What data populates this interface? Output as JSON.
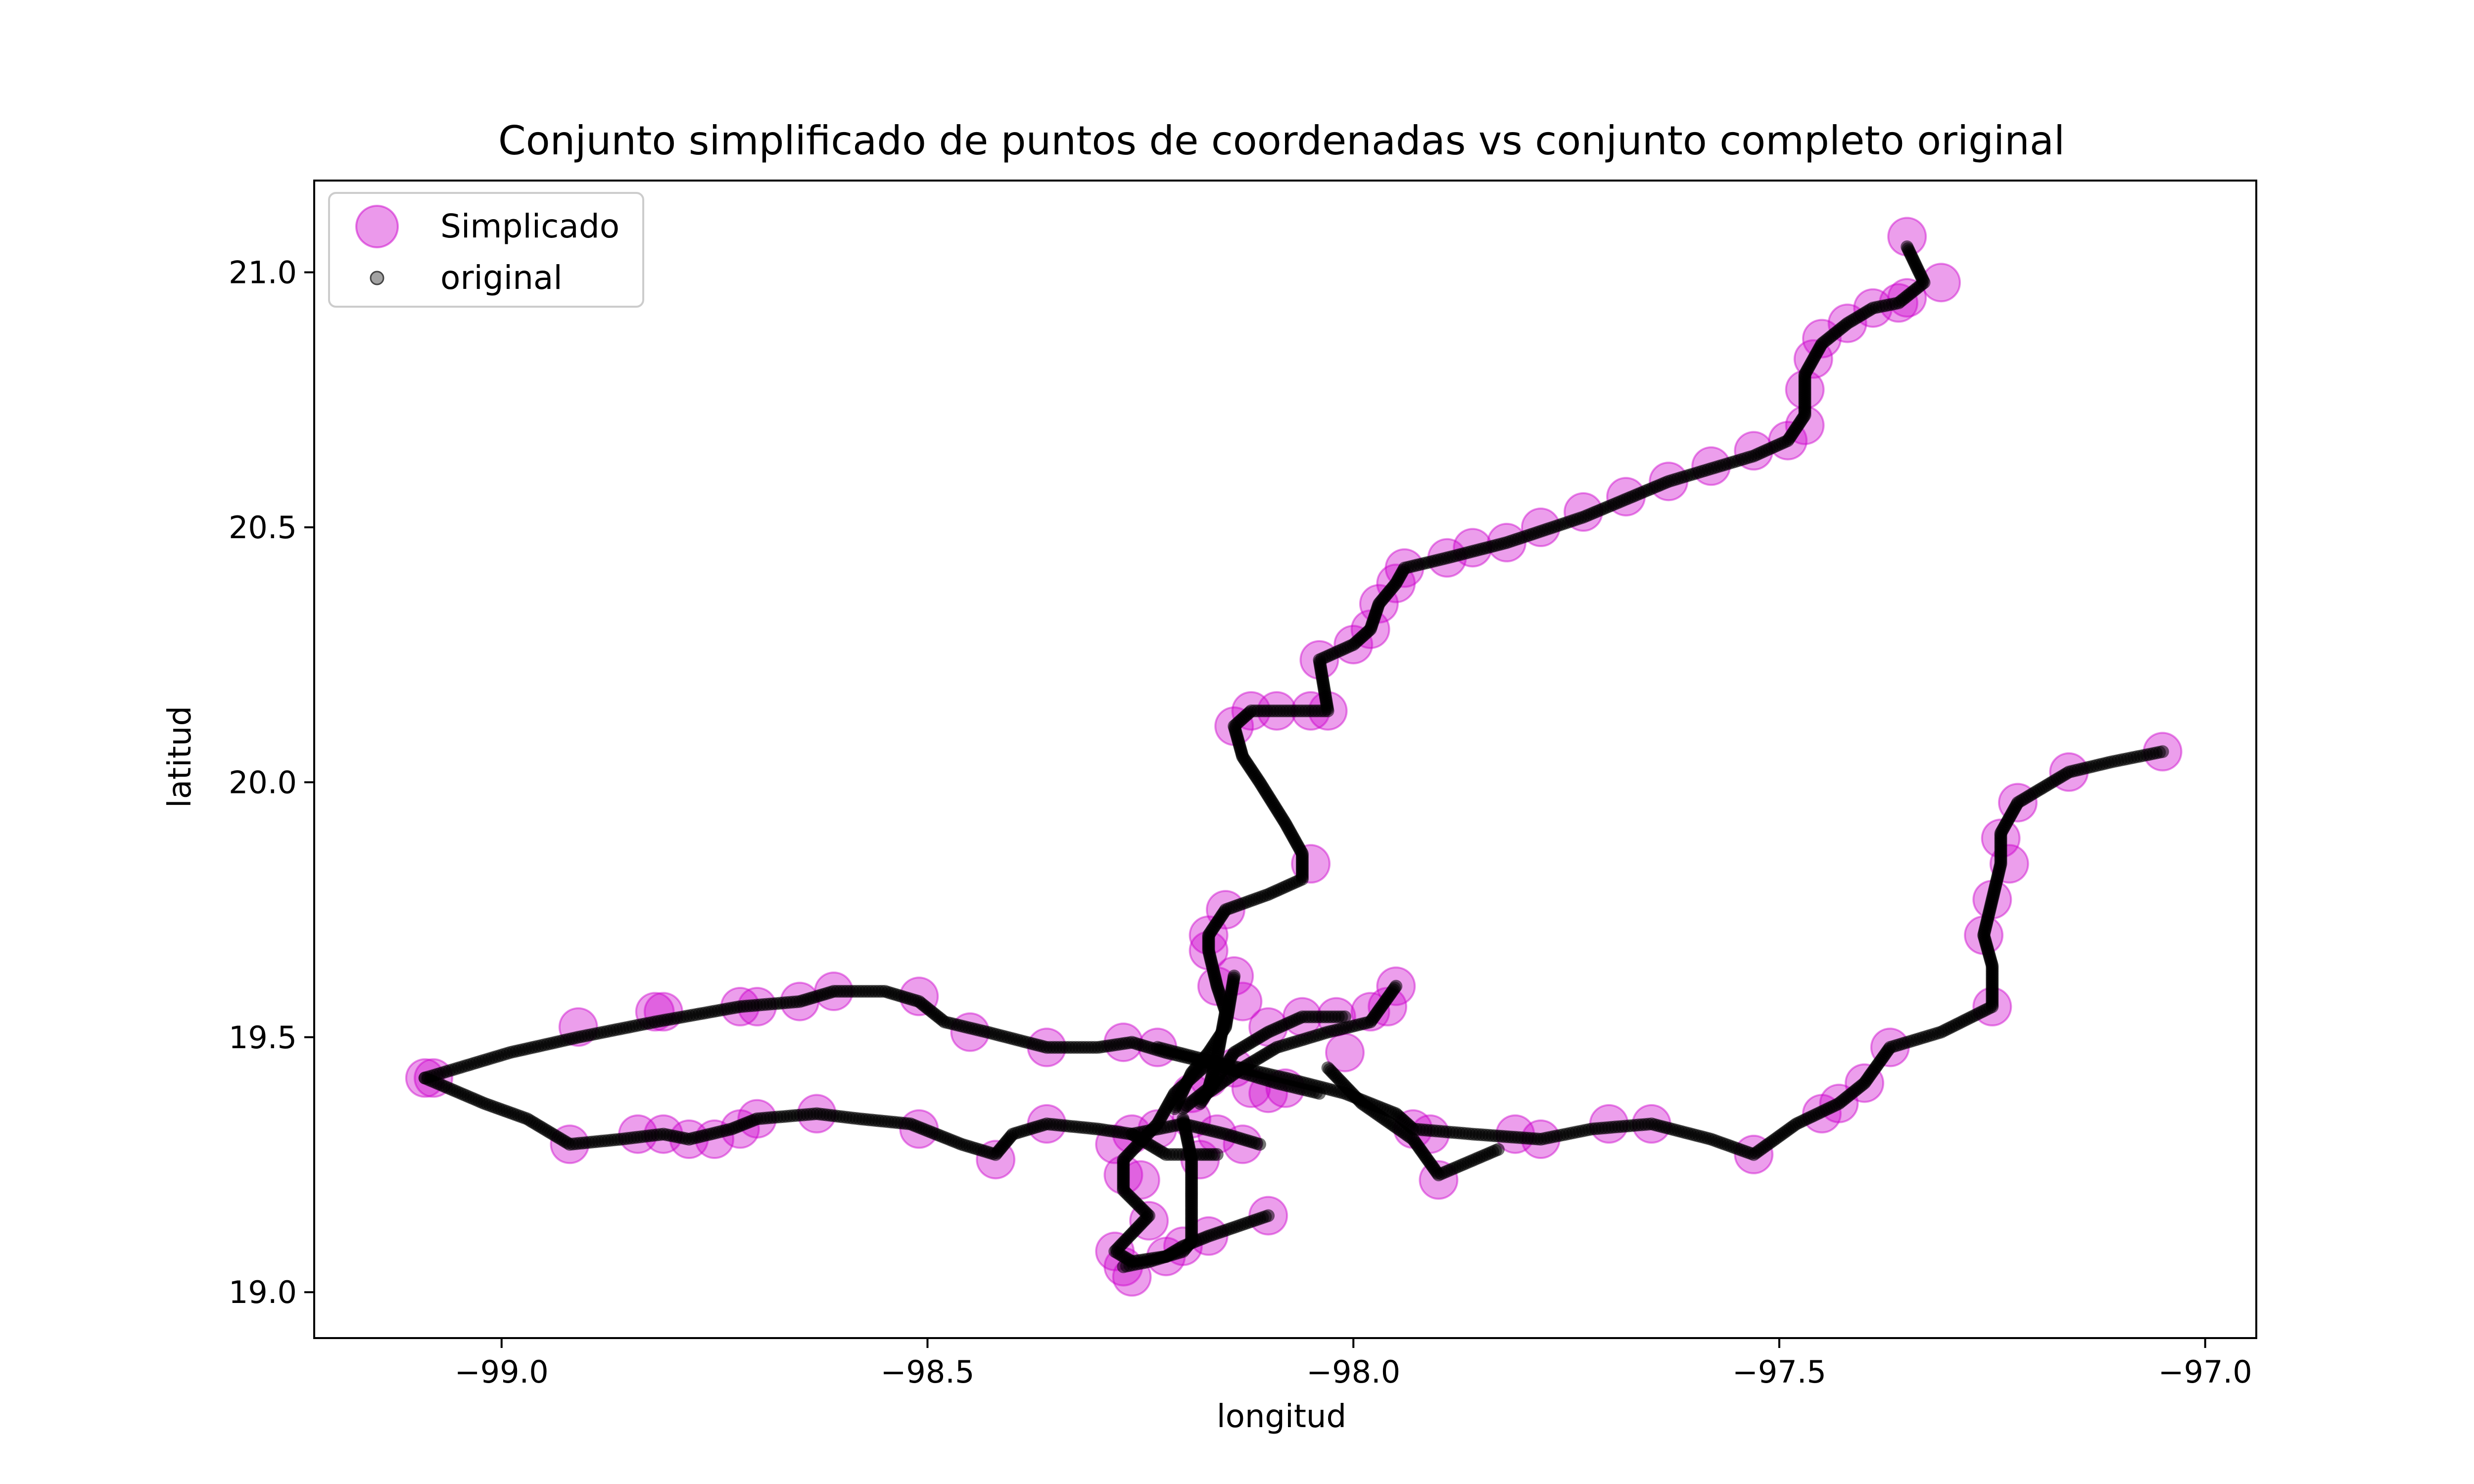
{
  "chart_data": {
    "type": "scatter",
    "title": "Conjunto simplificado de puntos de coordenadas vs conjunto completo original",
    "xlabel": "longitud",
    "ylabel": "latitud",
    "xlim": [
      -99.22,
      -96.94
    ],
    "ylim": [
      18.91,
      21.18
    ],
    "xticks": [
      -99.0,
      -98.5,
      -98.0,
      -97.5,
      -97.0
    ],
    "xtick_labels": [
      "−99.0",
      "−98.5",
      "−98.0",
      "−97.5",
      "−97.0"
    ],
    "yticks": [
      19.0,
      19.5,
      20.0,
      20.5,
      21.0
    ],
    "ytick_labels": [
      "19.0",
      "19.5",
      "20.0",
      "20.5",
      "21.0"
    ],
    "grid": false,
    "legend_position": "top-left",
    "series": [
      {
        "name": "Simplicado",
        "color": "#cc00cc",
        "marker": "large-circle",
        "points": [
          [
            -99.09,
            19.42
          ],
          [
            -99.08,
            19.42
          ],
          [
            -98.91,
            19.52
          ],
          [
            -98.82,
            19.55
          ],
          [
            -98.81,
            19.55
          ],
          [
            -98.72,
            19.56
          ],
          [
            -98.7,
            19.56
          ],
          [
            -98.65,
            19.57
          ],
          [
            -98.61,
            19.59
          ],
          [
            -98.51,
            19.58
          ],
          [
            -98.45,
            19.51
          ],
          [
            -98.36,
            19.48
          ],
          [
            -98.27,
            19.49
          ],
          [
            -98.23,
            19.48
          ],
          [
            -98.92,
            19.29
          ],
          [
            -98.84,
            19.31
          ],
          [
            -98.81,
            19.31
          ],
          [
            -98.78,
            19.3
          ],
          [
            -98.75,
            19.3
          ],
          [
            -98.72,
            19.32
          ],
          [
            -98.7,
            19.34
          ],
          [
            -98.63,
            19.35
          ],
          [
            -98.51,
            19.32
          ],
          [
            -98.42,
            19.26
          ],
          [
            -98.36,
            19.33
          ],
          [
            -98.28,
            19.29
          ],
          [
            -98.26,
            19.31
          ],
          [
            -98.23,
            19.32
          ],
          [
            -98.19,
            19.34
          ],
          [
            -98.16,
            19.31
          ],
          [
            -98.13,
            19.29
          ],
          [
            -98.27,
            19.23
          ],
          [
            -98.25,
            19.22
          ],
          [
            -98.24,
            19.14
          ],
          [
            -98.28,
            19.08
          ],
          [
            -98.27,
            19.05
          ],
          [
            -98.26,
            19.03
          ],
          [
            -98.22,
            19.07
          ],
          [
            -98.2,
            19.09
          ],
          [
            -98.17,
            19.11
          ],
          [
            -98.1,
            19.15
          ],
          [
            -98.18,
            19.26
          ],
          [
            -98.19,
            19.39
          ],
          [
            -98.17,
            19.42
          ],
          [
            -98.14,
            19.44
          ],
          [
            -98.12,
            19.4
          ],
          [
            -98.1,
            19.39
          ],
          [
            -98.08,
            19.4
          ],
          [
            -98.06,
            19.54
          ],
          [
            -98.02,
            19.54
          ],
          [
            -97.98,
            19.55
          ],
          [
            -97.96,
            19.56
          ],
          [
            -97.95,
            19.6
          ],
          [
            -98.01,
            19.47
          ],
          [
            -97.93,
            19.32
          ],
          [
            -97.91,
            19.31
          ],
          [
            -97.9,
            19.22
          ],
          [
            -97.81,
            19.31
          ],
          [
            -97.78,
            19.3
          ],
          [
            -97.7,
            19.33
          ],
          [
            -97.65,
            19.33
          ],
          [
            -97.53,
            19.27
          ],
          [
            -97.45,
            19.35
          ],
          [
            -97.43,
            19.37
          ],
          [
            -97.4,
            19.41
          ],
          [
            -97.37,
            19.48
          ],
          [
            -97.25,
            19.56
          ],
          [
            -97.26,
            19.7
          ],
          [
            -97.25,
            19.77
          ],
          [
            -97.24,
            19.89
          ],
          [
            -97.23,
            19.84
          ],
          [
            -97.22,
            19.96
          ],
          [
            -97.16,
            20.02
          ],
          [
            -97.05,
            20.06
          ],
          [
            -98.16,
            19.6
          ],
          [
            -98.17,
            19.67
          ],
          [
            -98.17,
            19.7
          ],
          [
            -98.15,
            19.75
          ],
          [
            -98.14,
            19.62
          ],
          [
            -98.13,
            19.57
          ],
          [
            -98.1,
            19.52
          ],
          [
            -98.05,
            19.84
          ],
          [
            -98.14,
            20.11
          ],
          [
            -98.12,
            20.14
          ],
          [
            -98.09,
            20.14
          ],
          [
            -98.05,
            20.14
          ],
          [
            -98.03,
            20.14
          ],
          [
            -98.04,
            20.24
          ],
          [
            -98.0,
            20.27
          ],
          [
            -97.98,
            20.3
          ],
          [
            -97.97,
            20.35
          ],
          [
            -97.95,
            20.39
          ],
          [
            -97.94,
            20.42
          ],
          [
            -97.89,
            20.44
          ],
          [
            -97.86,
            20.46
          ],
          [
            -97.82,
            20.47
          ],
          [
            -97.78,
            20.5
          ],
          [
            -97.73,
            20.53
          ],
          [
            -97.68,
            20.56
          ],
          [
            -97.63,
            20.59
          ],
          [
            -97.58,
            20.62
          ],
          [
            -97.53,
            20.65
          ],
          [
            -97.49,
            20.67
          ],
          [
            -97.47,
            20.7
          ],
          [
            -97.47,
            20.77
          ],
          [
            -97.46,
            20.83
          ],
          [
            -97.45,
            20.87
          ],
          [
            -97.42,
            20.9
          ],
          [
            -97.39,
            20.93
          ],
          [
            -97.36,
            20.94
          ],
          [
            -97.35,
            20.95
          ],
          [
            -97.35,
            21.07
          ],
          [
            -97.31,
            20.98
          ]
        ]
      },
      {
        "name": "original",
        "color": "#000000",
        "marker": "small-dot",
        "paths": [
          [
            [
              -99.09,
              19.42
            ],
            [
              -98.99,
              19.47
            ],
            [
              -98.91,
              19.5
            ],
            [
              -98.82,
              19.53
            ],
            [
              -98.72,
              19.56
            ],
            [
              -98.65,
              19.57
            ],
            [
              -98.61,
              19.59
            ],
            [
              -98.55,
              19.59
            ],
            [
              -98.51,
              19.57
            ],
            [
              -98.48,
              19.53
            ],
            [
              -98.43,
              19.51
            ],
            [
              -98.36,
              19.48
            ],
            [
              -98.3,
              19.48
            ],
            [
              -98.26,
              19.49
            ],
            [
              -98.22,
              19.47
            ],
            [
              -98.17,
              19.45
            ]
          ],
          [
            [
              -99.09,
              19.42
            ],
            [
              -99.02,
              19.37
            ],
            [
              -98.97,
              19.34
            ],
            [
              -98.92,
              19.29
            ],
            [
              -98.86,
              19.3
            ],
            [
              -98.81,
              19.31
            ],
            [
              -98.78,
              19.3
            ],
            [
              -98.73,
              19.32
            ],
            [
              -98.7,
              19.34
            ],
            [
              -98.63,
              19.35
            ],
            [
              -98.58,
              19.34
            ],
            [
              -98.52,
              19.33
            ],
            [
              -98.46,
              19.29
            ],
            [
              -98.42,
              19.27
            ],
            [
              -98.4,
              19.31
            ],
            [
              -98.36,
              19.33
            ],
            [
              -98.3,
              19.32
            ],
            [
              -98.26,
              19.31
            ],
            [
              -98.2,
              19.33
            ],
            [
              -98.15,
              19.31
            ],
            [
              -98.11,
              19.29
            ]
          ],
          [
            [
              -98.17,
              19.45
            ],
            [
              -98.21,
              19.39
            ],
            [
              -98.23,
              19.33
            ],
            [
              -98.27,
              19.26
            ],
            [
              -98.27,
              19.2
            ],
            [
              -98.24,
              19.15
            ],
            [
              -98.28,
              19.08
            ],
            [
              -98.26,
              19.06
            ],
            [
              -98.22,
              19.07
            ],
            [
              -98.2,
              19.09
            ],
            [
              -98.17,
              19.11
            ],
            [
              -98.1,
              19.15
            ]
          ],
          [
            [
              -98.2,
              19.34
            ],
            [
              -98.19,
              19.26
            ],
            [
              -98.19,
              19.18
            ],
            [
              -98.19,
              19.1
            ],
            [
              -98.2,
              19.08
            ],
            [
              -98.24,
              19.06
            ],
            [
              -98.27,
              19.05
            ]
          ],
          [
            [
              -98.26,
              19.31
            ],
            [
              -98.22,
              19.27
            ],
            [
              -98.18,
              19.27
            ],
            [
              -98.16,
              19.27
            ]
          ],
          [
            [
              -98.2,
              19.36
            ],
            [
              -98.17,
              19.4
            ],
            [
              -98.16,
              19.46
            ],
            [
              -98.15,
              19.55
            ],
            [
              -98.16,
              19.6
            ],
            [
              -98.17,
              19.67
            ],
            [
              -98.17,
              19.7
            ],
            [
              -98.15,
              19.75
            ],
            [
              -98.1,
              19.78
            ],
            [
              -98.06,
              19.81
            ],
            [
              -98.06,
              19.86
            ],
            [
              -98.08,
              19.92
            ],
            [
              -98.11,
              20.0
            ],
            [
              -98.13,
              20.05
            ],
            [
              -98.14,
              20.11
            ],
            [
              -98.12,
              20.14
            ],
            [
              -98.06,
              20.14
            ],
            [
              -98.03,
              20.14
            ],
            [
              -98.04,
              20.24
            ],
            [
              -98.0,
              20.27
            ],
            [
              -97.98,
              20.3
            ],
            [
              -97.97,
              20.35
            ],
            [
              -97.95,
              20.39
            ],
            [
              -97.94,
              20.42
            ],
            [
              -97.89,
              20.44
            ],
            [
              -97.82,
              20.47
            ],
            [
              -97.73,
              20.52
            ],
            [
              -97.63,
              20.59
            ],
            [
              -97.53,
              20.64
            ],
            [
              -97.49,
              20.67
            ],
            [
              -97.47,
              20.72
            ],
            [
              -97.47,
              20.8
            ],
            [
              -97.45,
              20.86
            ],
            [
              -97.42,
              20.9
            ],
            [
              -97.39,
              20.93
            ],
            [
              -97.36,
              20.94
            ],
            [
              -97.33,
              20.98
            ],
            [
              -97.35,
              21.05
            ]
          ],
          [
            [
              -98.23,
              19.48
            ],
            [
              -98.16,
              19.45
            ],
            [
              -98.08,
              19.42
            ],
            [
              -98.01,
              19.39
            ],
            [
              -97.95,
              19.35
            ],
            [
              -97.93,
              19.32
            ],
            [
              -97.86,
              19.31
            ],
            [
              -97.78,
              19.3
            ],
            [
              -97.72,
              19.32
            ],
            [
              -97.65,
              19.33
            ],
            [
              -97.58,
              19.3
            ],
            [
              -97.53,
              19.27
            ],
            [
              -97.48,
              19.33
            ],
            [
              -97.43,
              19.37
            ],
            [
              -97.4,
              19.41
            ],
            [
              -97.37,
              19.48
            ],
            [
              -97.31,
              19.51
            ],
            [
              -97.25,
              19.56
            ],
            [
              -97.25,
              19.64
            ],
            [
              -97.26,
              19.7
            ],
            [
              -97.25,
              19.77
            ],
            [
              -97.24,
              19.84
            ],
            [
              -97.24,
              19.9
            ],
            [
              -97.22,
              19.96
            ],
            [
              -97.16,
              20.02
            ],
            [
              -97.11,
              20.04
            ],
            [
              -97.05,
              20.06
            ]
          ],
          [
            [
              -98.18,
              19.38
            ],
            [
              -98.13,
              19.44
            ],
            [
              -98.09,
              19.48
            ],
            [
              -98.03,
              19.51
            ],
            [
              -97.98,
              19.53
            ],
            [
              -97.95,
              19.6
            ]
          ],
          [
            [
              -98.18,
              19.37
            ],
            [
              -98.14,
              19.47
            ],
            [
              -98.1,
              19.51
            ],
            [
              -98.06,
              19.54
            ],
            [
              -98.01,
              19.54
            ]
          ],
          [
            [
              -98.14,
              19.62
            ],
            [
              -98.15,
              19.52
            ],
            [
              -98.17,
              19.47
            ],
            [
              -98.19,
              19.43
            ],
            [
              -98.21,
              19.36
            ]
          ],
          [
            [
              -98.03,
              19.44
            ],
            [
              -97.99,
              19.37
            ],
            [
              -97.93,
              19.3
            ],
            [
              -97.9,
              19.23
            ],
            [
              -97.83,
              19.28
            ]
          ],
          [
            [
              -98.15,
              19.44
            ],
            [
              -98.09,
              19.41
            ],
            [
              -98.04,
              19.39
            ]
          ]
        ]
      }
    ]
  }
}
